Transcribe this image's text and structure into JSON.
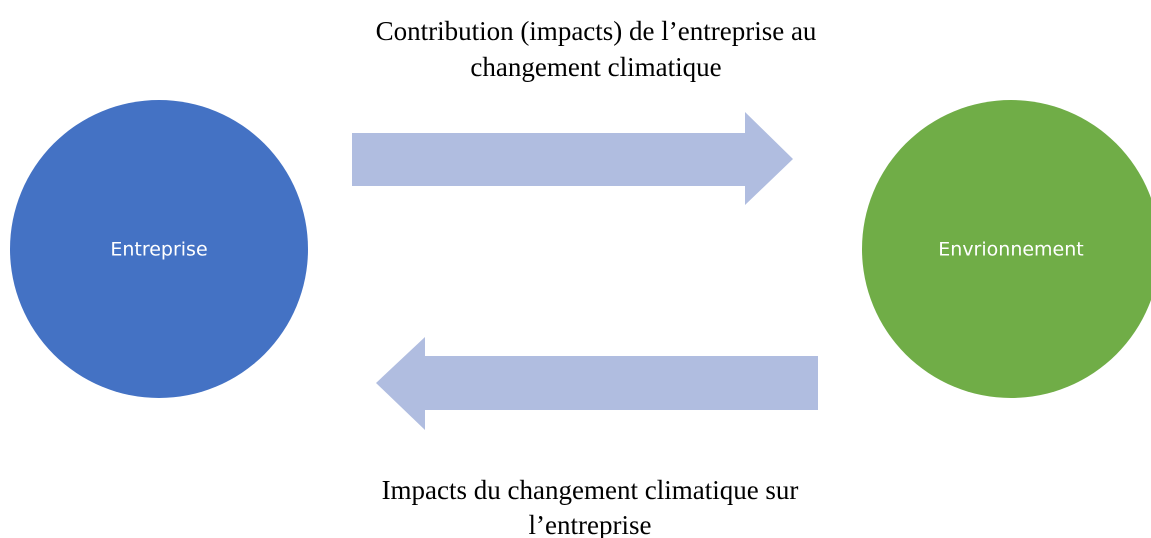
{
  "nodes": [
    {
      "label": "Entreprise"
    },
    {
      "label": "Envrionnement"
    }
  ],
  "edges": [
    {
      "label_lines": [
        "Contribution (impacts) de l’entreprise au",
        "changement climatique"
      ]
    },
    {
      "label_lines": [
        "Impacts du changement climatique sur",
        "l’entreprise"
      ]
    }
  ]
}
